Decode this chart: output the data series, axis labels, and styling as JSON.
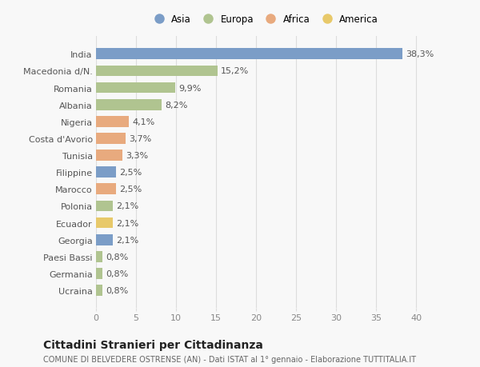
{
  "categories": [
    "India",
    "Macedonia d/N.",
    "Romania",
    "Albania",
    "Nigeria",
    "Costa d'Avorio",
    "Tunisia",
    "Filippine",
    "Marocco",
    "Polonia",
    "Ecuador",
    "Georgia",
    "Paesi Bassi",
    "Germania",
    "Ucraina"
  ],
  "values": [
    38.3,
    15.2,
    9.9,
    8.2,
    4.1,
    3.7,
    3.3,
    2.5,
    2.5,
    2.1,
    2.1,
    2.1,
    0.8,
    0.8,
    0.8
  ],
  "labels": [
    "38,3%",
    "15,2%",
    "9,9%",
    "8,2%",
    "4,1%",
    "3,7%",
    "3,3%",
    "2,5%",
    "2,5%",
    "2,1%",
    "2,1%",
    "2,1%",
    "0,8%",
    "0,8%",
    "0,8%"
  ],
  "colors": [
    "#7b9dc7",
    "#b0c490",
    "#b0c490",
    "#b0c490",
    "#e8aa7e",
    "#e8aa7e",
    "#e8aa7e",
    "#7b9dc7",
    "#e8aa7e",
    "#b0c490",
    "#e8c96a",
    "#7b9dc7",
    "#b0c490",
    "#b0c490",
    "#b0c490"
  ],
  "legend_labels": [
    "Asia",
    "Europa",
    "Africa",
    "America"
  ],
  "legend_colors": [
    "#7b9dc7",
    "#b0c490",
    "#e8aa7e",
    "#e8c96a"
  ],
  "xlim": [
    0,
    42
  ],
  "xticks": [
    0,
    5,
    10,
    15,
    20,
    25,
    30,
    35,
    40
  ],
  "title": "Cittadini Stranieri per Cittadinanza",
  "subtitle": "COMUNE DI BELVEDERE OSTRENSE (AN) - Dati ISTAT al 1° gennaio - Elaborazione TUTTITALIA.IT",
  "background_color": "#f8f8f8",
  "bar_height": 0.65,
  "grid_color": "#dddddd",
  "label_fontsize": 8,
  "ytick_fontsize": 8,
  "xtick_fontsize": 8,
  "title_fontsize": 10,
  "subtitle_fontsize": 7
}
